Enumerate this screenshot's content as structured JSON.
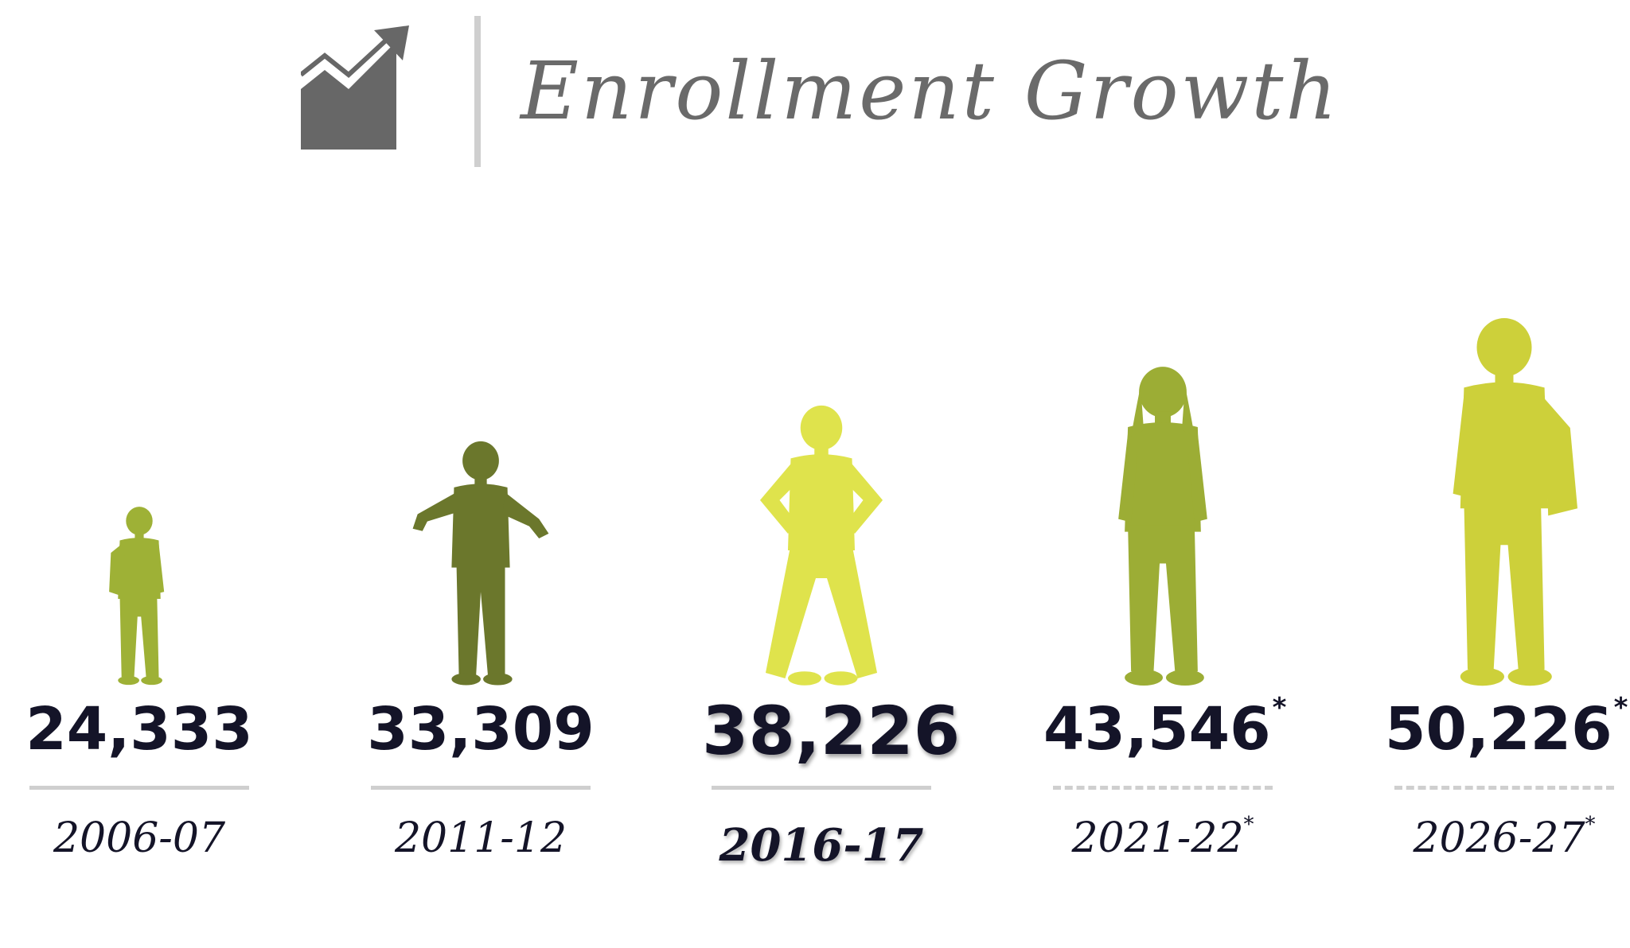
{
  "title": "Enrollment Growth",
  "header_icon": "trend-up-chart-icon",
  "chart_data": {
    "type": "bar",
    "title": "Enrollment Growth",
    "categories": [
      "2006-07",
      "2011-12",
      "2016-17",
      "2021-22",
      "2026-27"
    ],
    "values": [
      24333,
      33309,
      38226,
      43546,
      50226
    ],
    "value_labels": [
      "24,333",
      "33,309",
      "38,226",
      "43,546",
      "50,226"
    ],
    "projected": [
      false,
      false,
      false,
      true,
      true
    ],
    "projected_marker": "*",
    "highlighted_index": 2,
    "colors": [
      "#9eb136",
      "#6b772c",
      "#dfe34c",
      "#9cad35",
      "#cdd03a"
    ],
    "icons": [
      "child-with-backpack-icon",
      "running-boy-icon",
      "girl-hands-on-hips-icon",
      "teen-girl-walking-icon",
      "young-man-with-backpack-icon"
    ]
  }
}
